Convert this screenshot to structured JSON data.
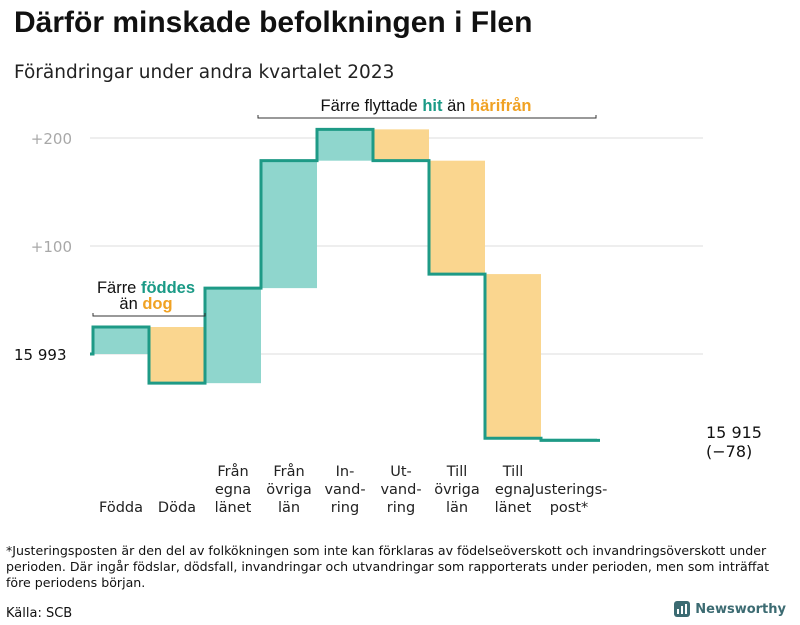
{
  "title": "Därför minskade befolkningen i Flen",
  "subtitle": "Förändringar under andra kvartalet 2023",
  "chart_data": {
    "type": "waterfall",
    "y_base_label": "15  993",
    "y_ticks": [
      {
        "value": 100,
        "label": "+100"
      },
      {
        "value": 200,
        "label": "+200"
      }
    ],
    "ylim": [
      -90,
      215
    ],
    "start_value": 0,
    "steps": [
      {
        "label_lines": [
          "Födda"
        ],
        "value": 25,
        "color": "#8fd6cd"
      },
      {
        "label_lines": [
          "Döda"
        ],
        "value": -52,
        "color": "#fad68f"
      },
      {
        "label_lines": [
          "Från",
          "egna",
          "länet"
        ],
        "value": 88,
        "color": "#8fd6cd"
      },
      {
        "label_lines": [
          "Från",
          "övriga",
          "län"
        ],
        "value": 118,
        "color": "#8fd6cd"
      },
      {
        "label_lines": [
          "In-",
          "vand-",
          "ring"
        ],
        "value": 29,
        "color": "#8fd6cd"
      },
      {
        "label_lines": [
          "Ut-",
          "vand-",
          "ring"
        ],
        "value": -29,
        "color": "#fad68f"
      },
      {
        "label_lines": [
          "Till",
          "övriga",
          "län"
        ],
        "value": -105,
        "color": "#fad68f"
      },
      {
        "label_lines": [
          "Till",
          "egna",
          "länet"
        ],
        "value": -152,
        "color": "#fad68f"
      },
      {
        "label_lines": [
          "Justerings-",
          "post*"
        ],
        "value": -2,
        "color": "#c0e8e3"
      }
    ],
    "end_labels": [
      "15 915",
      "(−78)"
    ],
    "annotations": {
      "birth": {
        "line1": "Färre",
        "hl1": "föddes",
        "line2": "än",
        "hl2": "dog"
      },
      "move": {
        "text": "Färre flyttade",
        "hl1": "hit",
        "mid": "än",
        "hl2": "härifrån"
      }
    },
    "colors": {
      "in": "#8fd6cd",
      "out": "#fad68f",
      "line": "#1e9a86",
      "hl_in": "#1a9a86",
      "hl_out": "#f0a224",
      "grid": "#dcdcdc",
      "tick": "#a8a8a8"
    }
  },
  "footnote": "*Justeringsposten är den del av folkökningen som inte kan förklaras av födelseöverskott och invandringsöverskott under perioden. Där ingår födslar, dödsfall, invandringar och utvandringar som rapporterats under perioden, men som inträffat före periodens början.",
  "source": "Källa: SCB",
  "brand": {
    "name": "Newsworthy",
    "icon": "bar-chart-icon"
  }
}
